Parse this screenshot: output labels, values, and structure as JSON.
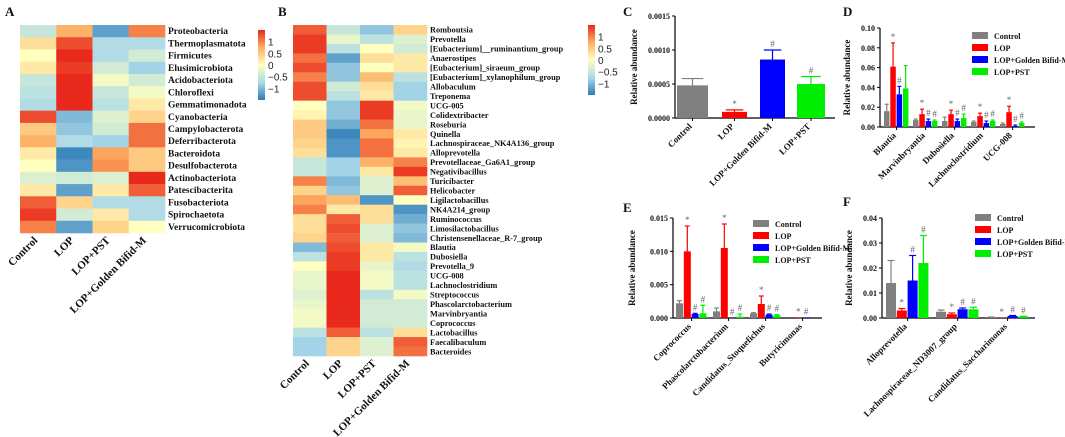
{
  "colors": {
    "Control": "#808080",
    "LOP": "#ff0000",
    "LOP+Golden Bifid-M": "#0000ff",
    "LOP+PST": "#00ee00",
    "heat_low": "#2c7bb6",
    "heat_mid": "#ffffbf",
    "heat_high": "#e8291c"
  },
  "chart_data": [
    {
      "panel": "A",
      "type": "heatmap",
      "columns": [
        "Control",
        "LOP",
        "LOP+PST",
        "LOP+Golden Bifid-M"
      ],
      "colorbar_ticks": [
        "1",
        "0.5",
        "0",
        "−0.5",
        "−1"
      ],
      "colorbar_values": [
        1,
        0.5,
        0,
        -0.5,
        -1
      ],
      "range": [
        -1.5,
        1.5
      ],
      "rows": [
        "Proteobacteria",
        "Thermoplasmatota",
        "Firmicutes",
        "Elusimicrobiota",
        "Acidobacteriota",
        "Chloroflexi",
        "Gemmatimonadota",
        "Cyanobacteria",
        "Campylobacterota",
        "Deferribacterota",
        "Bacteroidota",
        "Desulfobacterota",
        "Actinobacteriota",
        "Patescibacterita",
        "Fusobacteriota",
        "Spirochaetota",
        "Verrucomicrobiota"
      ],
      "values": [
        [
          -0.5,
          0.7,
          -1.2,
          1.0
        ],
        [
          0.3,
          1.3,
          -0.7,
          -0.7
        ],
        [
          0.0,
          1.5,
          -0.7,
          -0.4
        ],
        [
          0.2,
          1.4,
          -0.4,
          -0.8
        ],
        [
          -0.5,
          1.5,
          -0.1,
          -0.4
        ],
        [
          -0.6,
          1.5,
          -0.5,
          -0.1
        ],
        [
          -0.7,
          1.5,
          -0.6,
          0.2
        ],
        [
          1.3,
          -1.0,
          -0.3,
          0.4
        ],
        [
          0.5,
          -0.9,
          -0.4,
          1.1
        ],
        [
          0.7,
          -0.7,
          -0.8,
          1.1
        ],
        [
          0.2,
          -1.4,
          0.8,
          0.5
        ],
        [
          0.0,
          -1.3,
          0.9,
          0.5
        ],
        [
          -0.3,
          -0.4,
          -0.3,
          1.5
        ],
        [
          0.2,
          -1.2,
          0.2,
          1.2
        ],
        [
          1.2,
          0.4,
          -0.7,
          -0.7
        ],
        [
          1.4,
          -0.4,
          0.2,
          -0.7
        ],
        [
          1.0,
          -1.2,
          0.4,
          0.0
        ]
      ]
    },
    {
      "panel": "B",
      "type": "heatmap",
      "columns": [
        "Control",
        "LOP",
        "LOP+PST",
        "LOP+Golden Bifid-M"
      ],
      "colorbar_ticks": [
        "1",
        "0.5",
        "0",
        "−0.5",
        "−1"
      ],
      "colorbar_values": [
        1,
        0.5,
        0,
        -0.5,
        -1
      ],
      "range": [
        -1.5,
        1.5
      ],
      "rows": [
        "Romboutsia",
        "Prevotella",
        "[Eubacterium]__ruminantium_group",
        "Anaerostipes",
        "[Eubacterium]_siraeum_group",
        "[Eubacterium]_xylanophilum_group",
        "Allobaculum",
        "Treponema",
        "UCG-005",
        "Colidextribacter",
        "Roseburia",
        "Quinella",
        "Lachnospiraceae_NK4A136_group",
        "Alloprevotella",
        "Prevotellaceae_Ga6A1_group",
        "Negativibacillus",
        "Turicibacter",
        "Helicobacter",
        "Ligilactobacillus",
        "NK4A214_group",
        "Ruminococcus",
        "Limosilactobacillus",
        "Christensenellaceae_R-7_group",
        "Blautia",
        "Dubosiella",
        "Prevotella_9",
        "UCG-008",
        "Lachnoclostridium",
        "Streptococcus",
        "Phascolarctobacterium",
        "Marvinbryantia",
        "Coprococcus",
        "Lactobacillus",
        "Faecalibaculum",
        "Bacteroides"
      ],
      "values": [
        [
          1.2,
          -0.5,
          -0.9,
          0.4
        ],
        [
          1.4,
          -0.2,
          -0.6,
          -0.3
        ],
        [
          1.4,
          -0.6,
          0.0,
          -0.4
        ],
        [
          1.1,
          -1.2,
          0.3,
          0.2
        ],
        [
          1.3,
          -0.9,
          0.0,
          0.2
        ],
        [
          1.0,
          -0.9,
          0.6,
          -0.6
        ],
        [
          1.3,
          -0.4,
          0.3,
          -0.8
        ],
        [
          1.3,
          -0.6,
          0.2,
          -0.8
        ],
        [
          0.0,
          -0.9,
          1.4,
          -0.1
        ],
        [
          0.1,
          -0.9,
          1.4,
          -0.2
        ],
        [
          0.5,
          -1.1,
          1.1,
          -0.2
        ],
        [
          0.5,
          -1.4,
          0.8,
          0.2
        ],
        [
          0.4,
          -1.3,
          1.1,
          0.1
        ],
        [
          0.3,
          -1.3,
          1.1,
          0.2
        ],
        [
          -0.5,
          -0.8,
          0.7,
          1.0
        ],
        [
          -0.5,
          -0.8,
          0.2,
          1.4
        ],
        [
          1.0,
          -1.0,
          -0.3,
          0.6
        ],
        [
          0.4,
          -0.9,
          -0.3,
          1.2
        ],
        [
          0.8,
          0.6,
          -1.3,
          0.0
        ],
        [
          1.0,
          0.2,
          0.3,
          -1.3
        ],
        [
          0.3,
          1.2,
          0.3,
          -1.1
        ],
        [
          0.3,
          1.3,
          -0.3,
          -0.9
        ],
        [
          0.4,
          1.2,
          -0.3,
          -1.0
        ],
        [
          -1.0,
          1.3,
          0.2,
          -0.1
        ],
        [
          -0.6,
          1.4,
          0.2,
          -0.6
        ],
        [
          0.0,
          1.4,
          -0.2,
          -0.7
        ],
        [
          -0.2,
          1.5,
          -0.1,
          -0.6
        ],
        [
          -0.2,
          1.5,
          -0.1,
          -0.6
        ],
        [
          -0.3,
          1.5,
          -0.6,
          -0.1
        ],
        [
          -0.2,
          1.5,
          -0.4,
          -0.4
        ],
        [
          -0.1,
          1.5,
          -0.4,
          -0.4
        ],
        [
          -0.1,
          1.5,
          -0.4,
          -0.4
        ],
        [
          -0.6,
          1.2,
          -0.6,
          0.3
        ],
        [
          -0.8,
          0.4,
          -0.3,
          1.2
        ],
        [
          -0.8,
          0.4,
          -0.3,
          1.1
        ]
      ]
    },
    {
      "panel": "C",
      "type": "bar",
      "ylabel": "Relative abundance",
      "ylim": [
        0,
        0.0015
      ],
      "yticks": [
        "0.0000",
        "0.0005",
        "0.0010",
        "0.0015"
      ],
      "ytick_values": [
        0,
        0.0005,
        0.001,
        0.0015
      ],
      "categories": [
        "Control",
        "LOP",
        "LOP+Golden Bifid-M",
        "LOP+PST"
      ],
      "values": [
        0.00048,
        9e-05,
        0.00086,
        0.0005
      ],
      "error_top": [
        0.00058,
        0.00012,
        0.001,
        0.00061
      ],
      "markers": [
        "",
        "*",
        "#",
        "#"
      ]
    },
    {
      "panel": "D",
      "type": "bar",
      "ylabel": "Relative abundance",
      "ylim": [
        0,
        0.1
      ],
      "yticks": [
        "0.00",
        "0.02",
        "0.04",
        "0.06",
        "0.08",
        "0.10"
      ],
      "ytick_values": [
        0,
        0.02,
        0.04,
        0.06,
        0.08,
        0.1
      ],
      "categories": [
        "Blautia",
        "Marvinbryantia",
        "Dubosiella",
        "Lachnoclostridium",
        "UCG-008"
      ],
      "legend": "top-right",
      "series": [
        {
          "name": "Control",
          "values": [
            0.016,
            0.007,
            0.006,
            0.005,
            0.003
          ],
          "error_top": [
            0.023,
            0.008,
            0.01,
            0.006,
            0.004
          ],
          "markers": [
            "",
            "",
            "",
            "",
            ""
          ]
        },
        {
          "name": "LOP",
          "values": [
            0.061,
            0.013,
            0.013,
            0.011,
            0.015
          ],
          "error_top": [
            0.085,
            0.018,
            0.017,
            0.014,
            0.021
          ],
          "markers": [
            "*",
            "*",
            "*",
            "*",
            "*"
          ]
        },
        {
          "name": "LOP+Golden Bifid-M",
          "values": [
            0.033,
            0.006,
            0.006,
            0.004,
            0.001
          ],
          "error_top": [
            0.041,
            0.008,
            0.008,
            0.006,
            0.002
          ],
          "markers": [
            "#",
            "#",
            "#",
            "#",
            "#"
          ]
        },
        {
          "name": "LOP+PST",
          "values": [
            0.039,
            0.006,
            0.009,
            0.006,
            0.004
          ],
          "error_top": [
            0.062,
            0.007,
            0.013,
            0.007,
            0.005
          ],
          "markers": [
            "",
            "#",
            "#",
            "#",
            "#"
          ]
        }
      ]
    },
    {
      "panel": "E",
      "type": "bar",
      "ylabel": "Relative abundance",
      "ylim": [
        0,
        0.015
      ],
      "yticks": [
        "0.000",
        "0.005",
        "0.010",
        "0.015"
      ],
      "ytick_values": [
        0,
        0.005,
        0.01,
        0.015
      ],
      "categories": [
        "Coprococcus",
        "Phascolarctobacterium",
        "Candidatus_Stoquefichus",
        "Butyricimonas"
      ],
      "legend": "top-right",
      "series": [
        {
          "name": "Control",
          "values": [
            0.0022,
            0.001,
            0.0007,
            0.0
          ],
          "error_top": [
            0.0026,
            0.0015,
            0.0008,
            0.0
          ],
          "markers": [
            "",
            "",
            "",
            ""
          ]
        },
        {
          "name": "LOP",
          "values": [
            0.01,
            0.0105,
            0.0021,
            0.0001
          ],
          "error_top": [
            0.0138,
            0.0141,
            0.0033,
            0.0001
          ],
          "markers": [
            "*",
            "*",
            "*",
            "*"
          ]
        },
        {
          "name": "LOP+Golden Bifid-M",
          "values": [
            0.0006,
            0.0,
            0.0005,
            0.0001
          ],
          "error_top": [
            0.0007,
            0.0,
            0.0006,
            0.0001
          ],
          "markers": [
            "#",
            "#",
            "#",
            "#"
          ]
        },
        {
          "name": "LOP+PST",
          "values": [
            0.0007,
            0.0002,
            0.0004,
            0.0
          ],
          "error_top": [
            0.0019,
            0.0006,
            0.0005,
            0.0
          ],
          "markers": [
            "#",
            "#",
            "#",
            ""
          ]
        }
      ]
    },
    {
      "panel": "F",
      "type": "bar",
      "ylabel": "Relative abundance",
      "ylim": [
        0,
        0.04
      ],
      "yticks": [
        "0.00",
        "0.01",
        "0.02",
        "0.03",
        "0.04"
      ],
      "ytick_values": [
        0,
        0.01,
        0.02,
        0.03,
        0.04
      ],
      "categories": [
        "Alloprevotella",
        "Lachnospiraceae_ND3007_group",
        "Candidatus_Saccharimonas"
      ],
      "legend": "top-right",
      "series": [
        {
          "name": "Control",
          "values": [
            0.014,
            0.0025,
            0.0003
          ],
          "error_top": [
            0.023,
            0.0032,
            0.0004
          ],
          "markers": [
            "",
            "",
            ""
          ]
        },
        {
          "name": "LOP",
          "values": [
            0.003,
            0.0015,
            0.0001
          ],
          "error_top": [
            0.0038,
            0.002,
            0.0001
          ],
          "markers": [
            "*",
            "*",
            "*"
          ]
        },
        {
          "name": "LOP+Golden Bifid-M",
          "values": [
            0.015,
            0.0035,
            0.0008
          ],
          "error_top": [
            0.025,
            0.004,
            0.001
          ],
          "markers": [
            "#",
            "#",
            "#"
          ]
        },
        {
          "name": "LOP+PST",
          "values": [
            0.022,
            0.0035,
            0.0006
          ],
          "error_top": [
            0.033,
            0.0043,
            0.0007
          ],
          "markers": [
            "#",
            "#",
            "#"
          ]
        }
      ]
    }
  ]
}
